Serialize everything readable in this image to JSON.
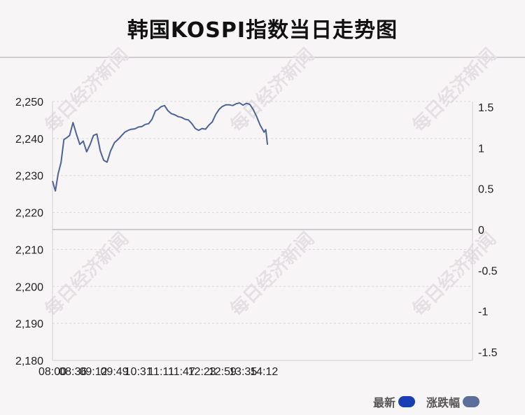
{
  "title": "韩国KOSPI指数当日走势图",
  "watermark": "每日经济新闻",
  "legend": [
    {
      "label": "最新",
      "color": "#1a3fb5"
    },
    {
      "label": "涨跌幅",
      "color": "#5b6e9c"
    }
  ],
  "colors": {
    "line": "#4d6496",
    "grid": "#d9d9dd",
    "zero_line": "#bdbdc2",
    "background": "#f8f5f7"
  },
  "chart_data": {
    "type": "line",
    "title": "韩国KOSPI指数当日走势图",
    "x_ticks": [
      "08:00",
      "08:36",
      "09:12",
      "09:49",
      "10:31",
      "11:11",
      "11:47",
      "12:23",
      "12:59",
      "13:35",
      "14:12"
    ],
    "y_left": {
      "ticks": [
        "2,250",
        "2,240",
        "2,230",
        "2,220",
        "2,210",
        "2,200",
        "2,190",
        "2,180"
      ],
      "lim": [
        2180,
        2250
      ]
    },
    "y_right": {
      "ticks": [
        "1.5",
        "1",
        "0.5",
        "0",
        "-0.5",
        "-1",
        "-1.5"
      ],
      "lim": [
        -1.5,
        1.5
      ]
    },
    "grid": true,
    "legend_position": "bottom-right",
    "series": [
      {
        "name": "最新",
        "x": [
          "08:00",
          "08:05",
          "08:10",
          "08:15",
          "08:20",
          "08:25",
          "08:30",
          "08:36",
          "08:42",
          "08:48",
          "08:54",
          "09:00",
          "09:06",
          "09:12",
          "09:18",
          "09:24",
          "09:30",
          "09:36",
          "09:42",
          "09:49",
          "09:55",
          "10:01",
          "10:07",
          "10:13",
          "10:19",
          "10:25",
          "10:31",
          "10:37",
          "10:43",
          "10:49",
          "10:55",
          "11:01",
          "11:05",
          "11:11",
          "11:17",
          "11:23",
          "11:29",
          "11:35",
          "11:41",
          "11:47",
          "11:53",
          "11:59",
          "12:05",
          "12:11",
          "12:17",
          "12:23",
          "12:29",
          "12:35",
          "12:41",
          "12:47",
          "12:53",
          "12:59",
          "13:05",
          "13:11",
          "13:17",
          "13:23",
          "13:29",
          "13:35",
          "13:41",
          "13:47",
          "13:53",
          "13:59",
          "14:05",
          "14:12",
          "14:15",
          "14:18"
        ],
        "values": [
          2228.5,
          2225.8,
          2230.5,
          2233.5,
          2239.7,
          2240.2,
          2240.8,
          2244.3,
          2241.2,
          2238.4,
          2239.3,
          2236.4,
          2238.3,
          2240.8,
          2241.2,
          2236.6,
          2234.1,
          2233.6,
          2236.6,
          2238.9,
          2239.7,
          2240.7,
          2241.7,
          2242.2,
          2242.5,
          2242.6,
          2243.1,
          2243.2,
          2243.8,
          2244.0,
          2245.2,
          2247.5,
          2247.8,
          2248.6,
          2248.9,
          2247.5,
          2246.7,
          2246.4,
          2245.9,
          2245.7,
          2245.2,
          2245.0,
          2244.0,
          2242.7,
          2242.2,
          2242.7,
          2242.5,
          2243.6,
          2244.5,
          2246.5,
          2247.9,
          2248.7,
          2249.1,
          2249.1,
          2248.9,
          2249.4,
          2249.6,
          2249.0,
          2249.5,
          2249.2,
          2247.8,
          2245.9,
          2243.6,
          2241.7,
          2242.4,
          2238.3
        ]
      }
    ]
  }
}
